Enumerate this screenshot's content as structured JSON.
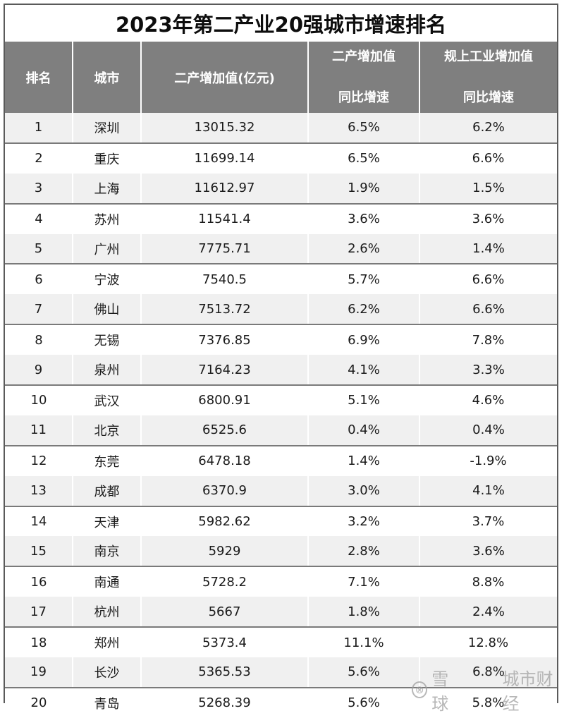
{
  "title": "2023年第二产业20强城市增速排名",
  "table": {
    "headers": [
      {
        "line1": "排名",
        "line2": ""
      },
      {
        "line1": "城市",
        "line2": ""
      },
      {
        "line1": "二产增加值(亿元)",
        "line2": ""
      },
      {
        "line1": "二产增加值",
        "line2": "同比增速"
      },
      {
        "line1": "规上工业增加值",
        "line2": "同比增速"
      }
    ],
    "rows": [
      {
        "rank": "1",
        "city": "深圳",
        "value": "13015.32",
        "growth": "6.5%",
        "industrial_growth": "6.2%"
      },
      {
        "rank": "2",
        "city": "重庆",
        "value": "11699.14",
        "growth": "6.5%",
        "industrial_growth": "6.6%"
      },
      {
        "rank": "3",
        "city": "上海",
        "value": "11612.97",
        "growth": "1.9%",
        "industrial_growth": "1.5%"
      },
      {
        "rank": "4",
        "city": "苏州",
        "value": "11541.4",
        "growth": "3.6%",
        "industrial_growth": "3.6%"
      },
      {
        "rank": "5",
        "city": "广州",
        "value": "7775.71",
        "growth": "2.6%",
        "industrial_growth": "1.4%"
      },
      {
        "rank": "6",
        "city": "宁波",
        "value": "7540.5",
        "growth": "5.7%",
        "industrial_growth": "6.6%"
      },
      {
        "rank": "7",
        "city": "佛山",
        "value": "7513.72",
        "growth": "6.2%",
        "industrial_growth": "6.6%"
      },
      {
        "rank": "8",
        "city": "无锡",
        "value": "7376.85",
        "growth": "6.9%",
        "industrial_growth": "7.8%"
      },
      {
        "rank": "9",
        "city": "泉州",
        "value": "7164.23",
        "growth": "4.1%",
        "industrial_growth": "3.3%"
      },
      {
        "rank": "10",
        "city": "武汉",
        "value": "6800.91",
        "growth": "5.1%",
        "industrial_growth": "4.6%"
      },
      {
        "rank": "11",
        "city": "北京",
        "value": "6525.6",
        "growth": "0.4%",
        "industrial_growth": "0.4%"
      },
      {
        "rank": "12",
        "city": "东莞",
        "value": "6478.18",
        "growth": "1.4%",
        "industrial_growth": "-1.9%"
      },
      {
        "rank": "13",
        "city": "成都",
        "value": "6370.9",
        "growth": "3.0%",
        "industrial_growth": "4.1%"
      },
      {
        "rank": "14",
        "city": "天津",
        "value": "5982.62",
        "growth": "3.2%",
        "industrial_growth": "3.7%"
      },
      {
        "rank": "15",
        "city": "南京",
        "value": "5929",
        "growth": "2.8%",
        "industrial_growth": "3.6%"
      },
      {
        "rank": "16",
        "city": "南通",
        "value": "5728.2",
        "growth": "7.1%",
        "industrial_growth": "8.8%"
      },
      {
        "rank": "17",
        "city": "杭州",
        "value": "5667",
        "growth": "1.8%",
        "industrial_growth": "2.4%"
      },
      {
        "rank": "18",
        "city": "郑州",
        "value": "5373.4",
        "growth": "11.1%",
        "industrial_growth": "12.8%"
      },
      {
        "rank": "19",
        "city": "长沙",
        "value": "5365.53",
        "growth": "5.6%",
        "industrial_growth": "6.8%"
      },
      {
        "rank": "20",
        "city": "青岛",
        "value": "5268.39",
        "growth": "5.6%",
        "industrial_growth": "5.8%"
      }
    ]
  },
  "watermark": {
    "logo_icon": "snowball-logo-icon",
    "brand": "雪球",
    "author": "城市财经"
  },
  "colors": {
    "header_bg": "#7f7f7f",
    "header_text": "#ffffff",
    "stripe_bg": "#f0f0f0",
    "border": "#5a5a5a"
  }
}
